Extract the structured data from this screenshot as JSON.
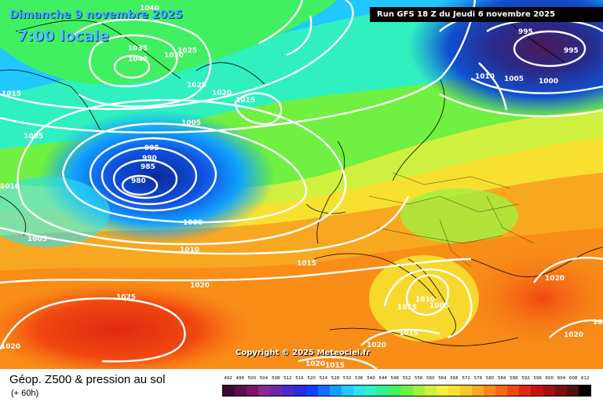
{
  "header": {
    "date_title": "Dimanche 9 novembre 2025",
    "time_title": "7:00 locale",
    "run_info": "Run GFS 18 Z du Jeudi 6 novembre 2025"
  },
  "footer": {
    "copyright": "Copyright © 2025 Meteociel.fr",
    "legend_title": "Géop. Z500 & pression au sol",
    "legend_subtitle": "(+ 60h)"
  },
  "map": {
    "isobar_labels": [
      "1040",
      "1035",
      "1040",
      "1030",
      "1025",
      "1015",
      "1025",
      "1020",
      "1015",
      "1005",
      "1005",
      "995",
      "990",
      "985",
      "980",
      "1000",
      "1010",
      "1010",
      "1005",
      "1015",
      "1020",
      "1025",
      "1020",
      "1010",
      "1005",
      "1015",
      "1015",
      "1020",
      "1015",
      "1020",
      "995",
      "995",
      "1010",
      "1005",
      "1000",
      "1020",
      "1020",
      "1015"
    ]
  },
  "scale": {
    "values": [
      "492",
      "496",
      "500",
      "504",
      "508",
      "512",
      "516",
      "520",
      "524",
      "528",
      "532",
      "536",
      "540",
      "544",
      "548",
      "552",
      "556",
      "560",
      "564",
      "568",
      "572",
      "576",
      "580",
      "584",
      "588",
      "592",
      "596",
      "600",
      "604",
      "608",
      "612"
    ],
    "colors": [
      "#3a0a2e",
      "#5a0f4a",
      "#7a1466",
      "#8a2a8a",
      "#6a2aa8",
      "#4a2ac8",
      "#2a2ae0",
      "#1040ff",
      "#1070ff",
      "#10a0ff",
      "#20c8ff",
      "#30e0f0",
      "#30f0c0",
      "#30f090",
      "#40f060",
      "#70f040",
      "#a0f040",
      "#d0f040",
      "#f0f040",
      "#f8e030",
      "#f8c828",
      "#f8a820",
      "#f88818",
      "#f86810",
      "#f04810",
      "#e02810",
      "#c81010",
      "#a01010",
      "#781010",
      "#501010",
      "#000000"
    ]
  }
}
